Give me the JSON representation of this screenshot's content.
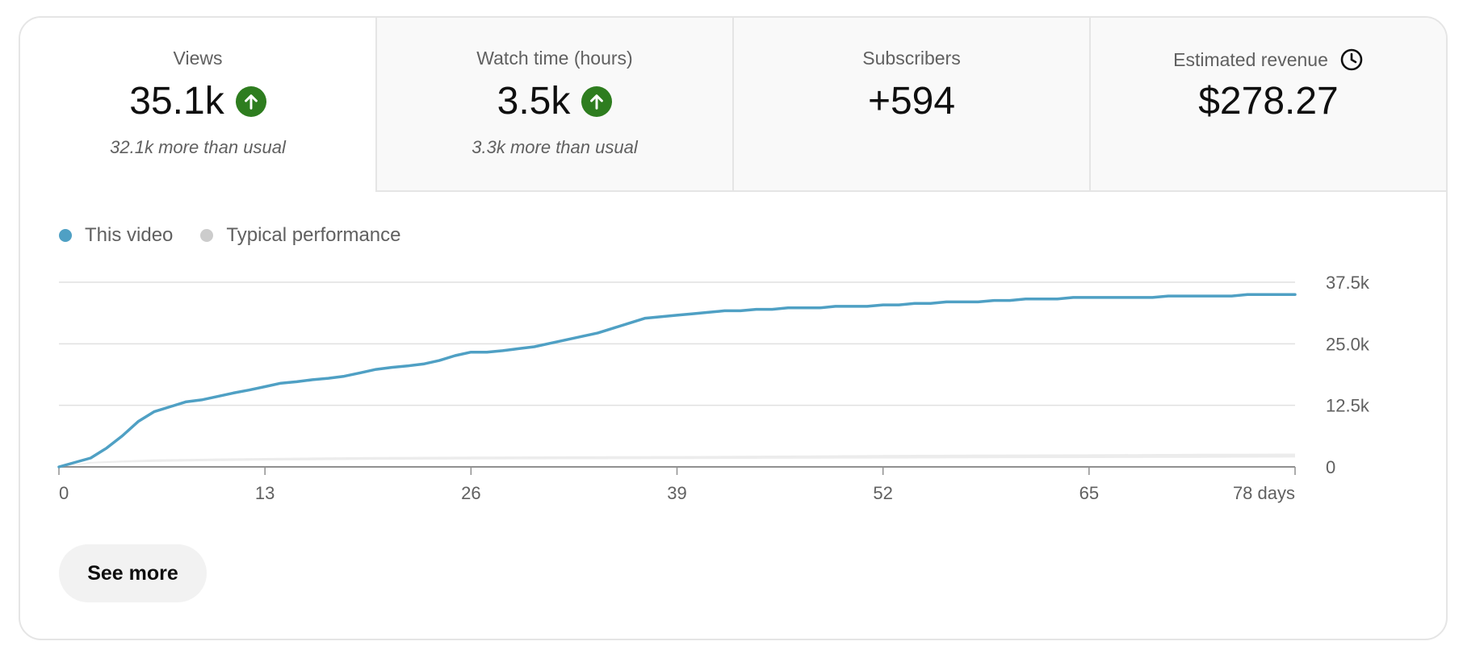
{
  "metrics": [
    {
      "label": "Views",
      "value": "35.1k",
      "note": "32.1k more than usual",
      "trend_icon": "arrow-up-icon"
    },
    {
      "label": "Watch time (hours)",
      "value": "3.5k",
      "note": "3.3k more than usual",
      "trend_icon": "arrow-up-icon"
    },
    {
      "label": "Subscribers",
      "value": "+594",
      "note": ""
    },
    {
      "label": "Estimated revenue",
      "value": "$278.27",
      "note": "",
      "label_icon": "clock-icon"
    }
  ],
  "legend": {
    "this_video": "This video",
    "typical": "Typical performance"
  },
  "colors": {
    "this_video": "#4fa0c4",
    "typical": "#cccccc",
    "trend_up": "#2e7d1f"
  },
  "see_more_label": "See more",
  "chart_data": {
    "type": "line",
    "x_ticks": [
      0,
      13,
      26,
      39,
      52,
      65,
      78
    ],
    "x_tick_labels": [
      "0",
      "13",
      "26",
      "39",
      "52",
      "65",
      "78 days"
    ],
    "y_ticks": [
      0,
      12500,
      25000,
      37500
    ],
    "y_tick_labels": [
      "0",
      "12.5k",
      "25.0k",
      "37.5k"
    ],
    "xlim": [
      0,
      78
    ],
    "ylim": [
      0,
      37500
    ],
    "grid": true,
    "legend_position": "top-left",
    "series": [
      {
        "name": "This video",
        "x": [
          0,
          1,
          2,
          3,
          4,
          5,
          6,
          7,
          8,
          9,
          10,
          11,
          12,
          13,
          14,
          15,
          16,
          17,
          18,
          19,
          20,
          21,
          22,
          23,
          24,
          25,
          26,
          27,
          28,
          29,
          30,
          31,
          32,
          33,
          34,
          35,
          36,
          37,
          38,
          39,
          40,
          41,
          42,
          43,
          44,
          45,
          46,
          47,
          48,
          49,
          50,
          51,
          52,
          53,
          54,
          55,
          56,
          57,
          58,
          59,
          60,
          61,
          62,
          63,
          64,
          65,
          66,
          67,
          68,
          69,
          70,
          71,
          72,
          73,
          74,
          75,
          76,
          77,
          78
        ],
        "y": [
          0,
          900,
          1800,
          3800,
          6300,
          9200,
          11200,
          12200,
          13200,
          13600,
          14300,
          15000,
          15600,
          16300,
          17000,
          17300,
          17700,
          18000,
          18400,
          19100,
          19800,
          20200,
          20500,
          20900,
          21600,
          22600,
          23300,
          23300,
          23600,
          24000,
          24400,
          25100,
          25800,
          26500,
          27200,
          28200,
          29200,
          30200,
          30500,
          30800,
          31100,
          31400,
          31700,
          31700,
          32000,
          32000,
          32300,
          32300,
          32300,
          32600,
          32600,
          32600,
          32900,
          32900,
          33200,
          33200,
          33500,
          33500,
          33500,
          33800,
          33800,
          34100,
          34100,
          34100,
          34400,
          34400,
          34400,
          34400,
          34400,
          34400,
          34700,
          34700,
          34700,
          34700,
          34700,
          35000,
          35000,
          35000,
          35000
        ]
      },
      {
        "name": "Typical performance",
        "x": [
          0,
          2,
          4,
          6,
          8,
          10,
          13,
          16,
          20,
          26,
          32,
          39,
          45,
          52,
          58,
          65,
          72,
          78
        ],
        "y_low": [
          0,
          700,
          900,
          1000,
          1100,
          1200,
          1300,
          1350,
          1450,
          1500,
          1550,
          1600,
          1650,
          1700,
          1750,
          1800,
          1850,
          1900
        ],
        "y_high": [
          0,
          1000,
          1300,
          1500,
          1600,
          1700,
          1800,
          1900,
          2000,
          2100,
          2150,
          2200,
          2300,
          2400,
          2500,
          2550,
          2650,
          2700
        ]
      }
    ]
  }
}
